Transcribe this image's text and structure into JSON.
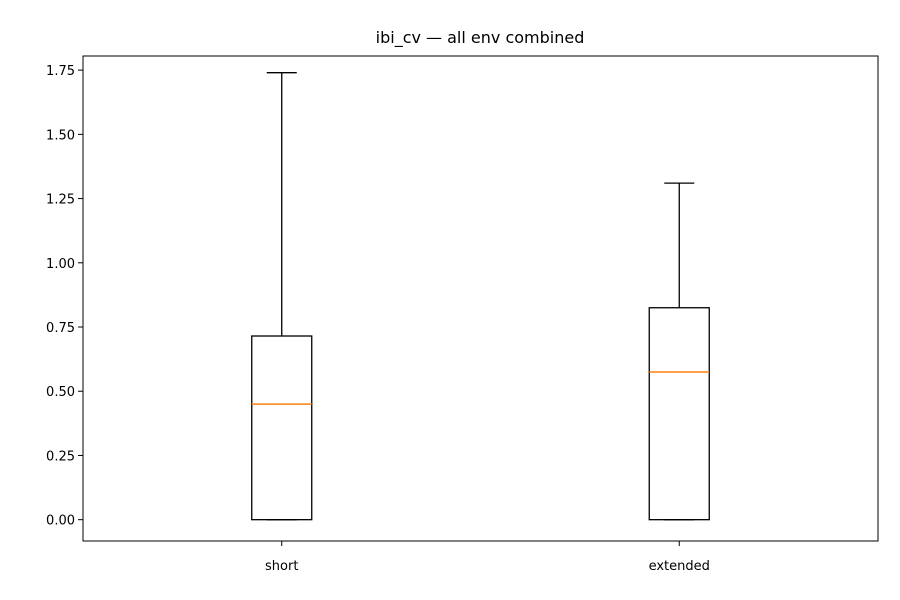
{
  "chart_data": {
    "type": "box",
    "title": "ibi_cv — all env combined",
    "xlabel": "",
    "ylabel": "",
    "categories": [
      "short",
      "extended"
    ],
    "boxes": [
      {
        "name": "short",
        "whisker_low": 0.0,
        "q1": 0.0,
        "median": 0.45,
        "q3": 0.715,
        "whisker_high": 1.74
      },
      {
        "name": "extended",
        "whisker_low": 0.0,
        "q1": 0.0,
        "median": 0.575,
        "q3": 0.825,
        "whisker_high": 1.31
      }
    ],
    "ylim": [
      -0.083,
      1.805
    ],
    "yticks": [
      0.0,
      0.25,
      0.5,
      0.75,
      1.0,
      1.25,
      1.5,
      1.75
    ],
    "ytick_labels": [
      "0.00",
      "0.25",
      "0.50",
      "0.75",
      "1.00",
      "1.25",
      "1.50",
      "1.75"
    ],
    "grid": false,
    "colors": {
      "box": "#000000",
      "median": "#ff7f0e",
      "background": "#ffffff"
    }
  }
}
